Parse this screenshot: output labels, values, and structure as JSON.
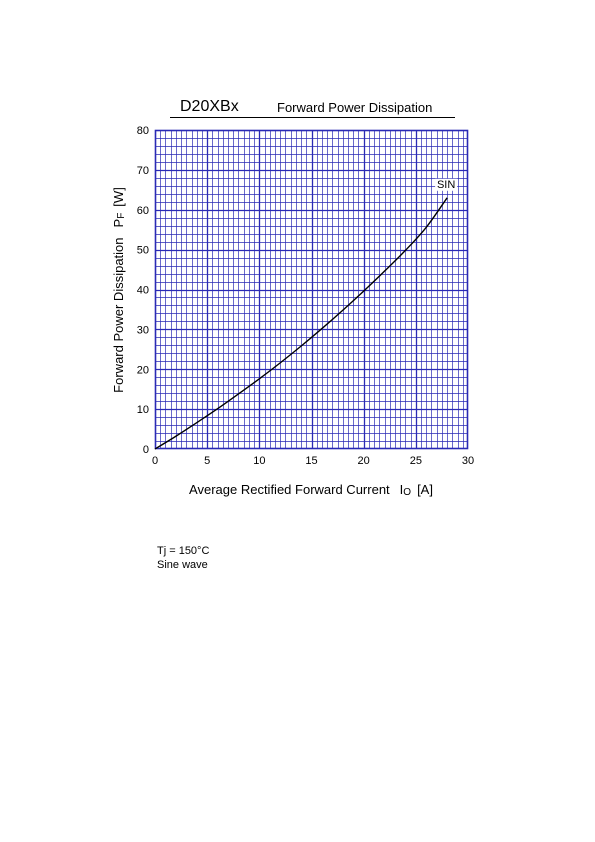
{
  "header": {
    "part_number": "D20XBx",
    "chart_title": "Forward Power Dissipation"
  },
  "chart_data": {
    "type": "line",
    "title": "Forward Power Dissipation",
    "xlabel": "Average Rectified Forward Current",
    "xlabel_symbol": "I",
    "xlabel_subscript": "O",
    "xlabel_unit": "[A]",
    "ylabel": "Forward Power Dissipation",
    "ylabel_symbol": "P",
    "ylabel_subscript": "F",
    "ylabel_unit": "[W]",
    "xlim": [
      0,
      30
    ],
    "ylim": [
      0,
      80
    ],
    "xticks": [
      0,
      5,
      10,
      15,
      20,
      25,
      30
    ],
    "yticks": [
      0,
      10,
      20,
      30,
      40,
      50,
      60,
      70,
      80
    ],
    "grid": true,
    "grid_color": "#2a2ab5",
    "line_color": "#000000",
    "series": [
      {
        "name": "SIN",
        "x": [
          0,
          2,
          4,
          6,
          8,
          10,
          12,
          14,
          16,
          18,
          20,
          22,
          24,
          26,
          28
        ],
        "y": [
          0,
          3.2,
          6.6,
          10.1,
          13.8,
          17.6,
          21.6,
          25.8,
          30.2,
          34.8,
          39.6,
          44.6,
          49.8,
          55.6,
          63.0
        ]
      }
    ]
  },
  "conditions": {
    "temperature": "Tj = 150°C",
    "waveform": "Sine wave"
  }
}
